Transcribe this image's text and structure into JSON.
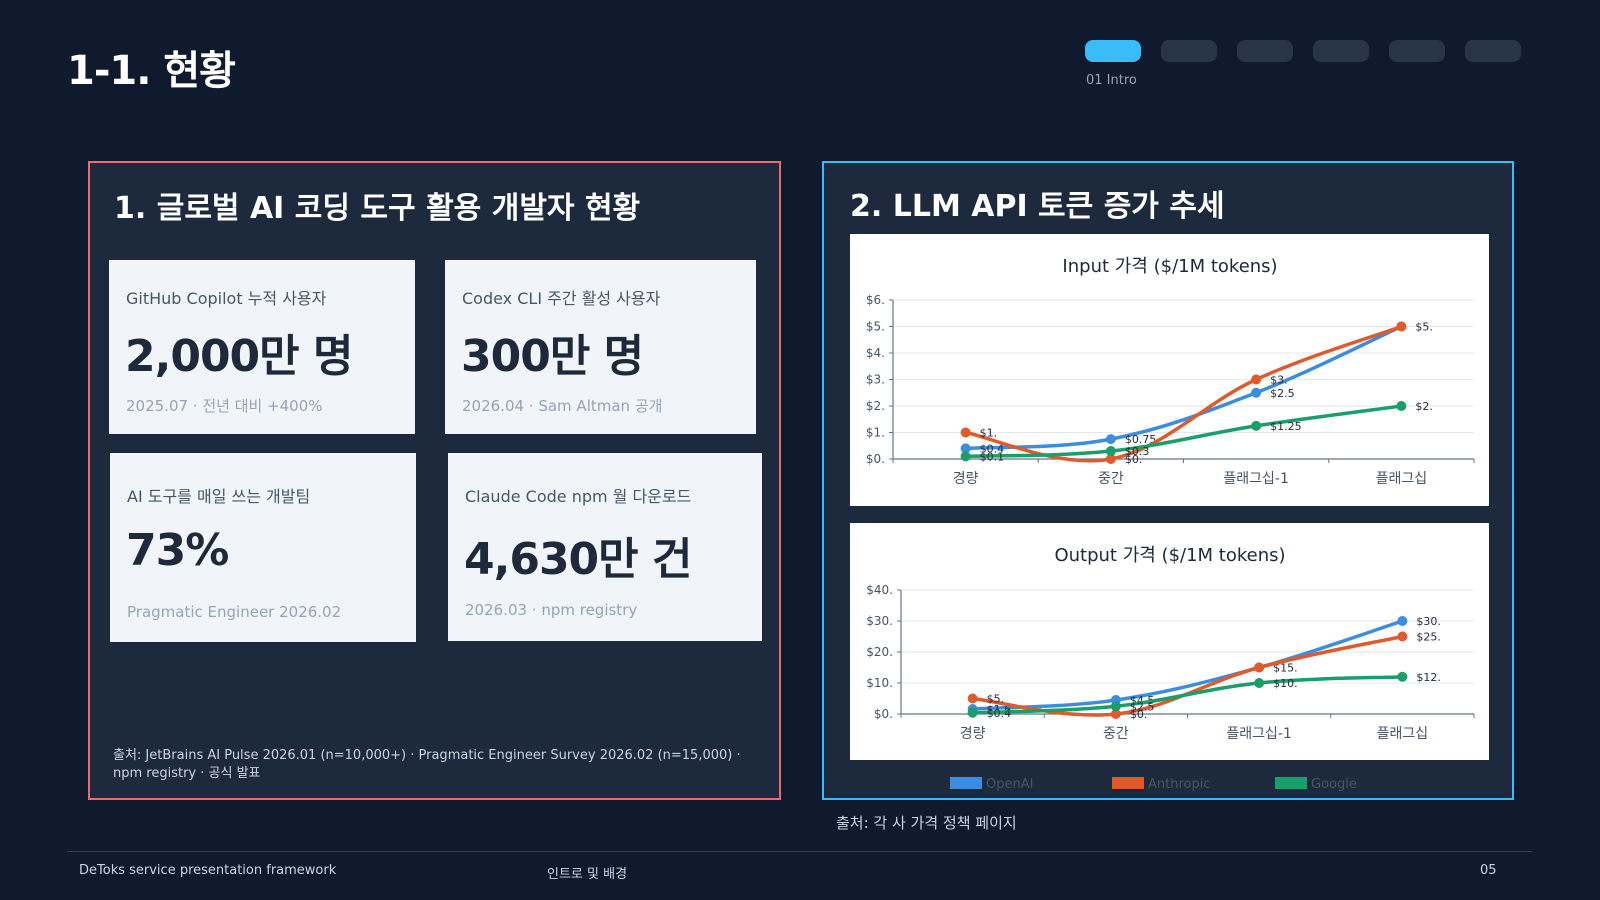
{
  "header": {
    "title": "1-1. 현황",
    "progress": {
      "total": 6,
      "active_index": 0,
      "label": "01 Intro"
    }
  },
  "left_panel": {
    "heading": "1. 글로벌 AI 코딩 도구 활용 개발자 현황",
    "cards": [
      {
        "label": "GitHub Copilot 누적 사용자",
        "value": "2,000만 명",
        "note": "2025.07 · 전년 대비 +400%"
      },
      {
        "label": "Codex CLI 주간 활성 사용자",
        "value": "300만 명",
        "note": "2026.04 · Sam Altman 공개"
      },
      {
        "label": "AI 도구를 매일 쓰는 개발팀",
        "value": "73%",
        "note": "Pragmatic Engineer 2026.02"
      },
      {
        "label": "Claude Code npm 월 다운로드",
        "value": "4,630만 건",
        "note": "2026.03 · npm registry"
      }
    ],
    "source": "출처: JetBrains AI Pulse 2026.01 (n=10,000+) · Pragmatic Engineer Survey 2026.02 (n=15,000) · npm registry · 공식 발표"
  },
  "right_panel": {
    "heading": "2. LLM API 토큰 증가 추세",
    "legend": [
      {
        "name": "OpenAI",
        "color": "#3b8de0"
      },
      {
        "name": "Anthropic",
        "color": "#e05a2b"
      },
      {
        "name": "Google",
        "color": "#1a9e6a"
      }
    ]
  },
  "chart_data": [
    {
      "type": "line",
      "title": "Input 가격  ($/1M tokens)",
      "categories": [
        "경량",
        "중간",
        "플래그십-1",
        "플래그십"
      ],
      "ylim": [
        0,
        6
      ],
      "yticks": [
        0,
        1,
        2,
        3,
        4,
        5,
        6
      ],
      "ytick_labels": [
        "$0.",
        "$1.",
        "$2.",
        "$3.",
        "$4.",
        "$5.",
        "$6."
      ],
      "grid": true,
      "legend": "bottom",
      "series": [
        {
          "name": "OpenAI",
          "color": "#3b8de0",
          "values": [
            0.4,
            0.75,
            2.5,
            5
          ],
          "labels": [
            "$0.4",
            "$0.75",
            "$2.5",
            "$5."
          ]
        },
        {
          "name": "Anthropic",
          "color": "#e05a2b",
          "values": [
            1,
            0,
            3,
            5
          ],
          "labels": [
            "$1.",
            "$0.",
            "$3.",
            ""
          ]
        },
        {
          "name": "Google",
          "color": "#1a9e6a",
          "values": [
            0.1,
            0.3,
            1.25,
            2
          ],
          "labels": [
            "$0.1",
            "$0.3",
            "$1.25",
            "$2."
          ]
        }
      ]
    },
    {
      "type": "line",
      "title": "Output 가격  ($/1M tokens)",
      "categories": [
        "경량",
        "중간",
        "플래그십-1",
        "플래그십"
      ],
      "ylim": [
        0,
        40
      ],
      "yticks": [
        0,
        10,
        20,
        30,
        40
      ],
      "ytick_labels": [
        "$0.",
        "$10.",
        "$20.",
        "$30.",
        "$40."
      ],
      "grid": true,
      "legend": "bottom",
      "series": [
        {
          "name": "OpenAI",
          "color": "#3b8de0",
          "values": [
            1.6,
            4.5,
            15,
            30
          ],
          "labels": [
            "$1.6",
            "$4.5",
            "$15.",
            "$30."
          ]
        },
        {
          "name": "Anthropic",
          "color": "#e05a2b",
          "values": [
            5,
            0,
            15,
            25
          ],
          "labels": [
            "$5.",
            "$0.",
            "",
            "$25."
          ]
        },
        {
          "name": "Google",
          "color": "#1a9e6a",
          "values": [
            0.4,
            2.5,
            10,
            12
          ],
          "labels": [
            "$0.4",
            "$2.5",
            "$10.",
            "$12."
          ]
        }
      ]
    }
  ],
  "right_source": "출처: 각 사 가격 정책 페이지",
  "footer": {
    "left": "DeToks service presentation framework",
    "center": "인트로 및 배경",
    "page": "05"
  }
}
